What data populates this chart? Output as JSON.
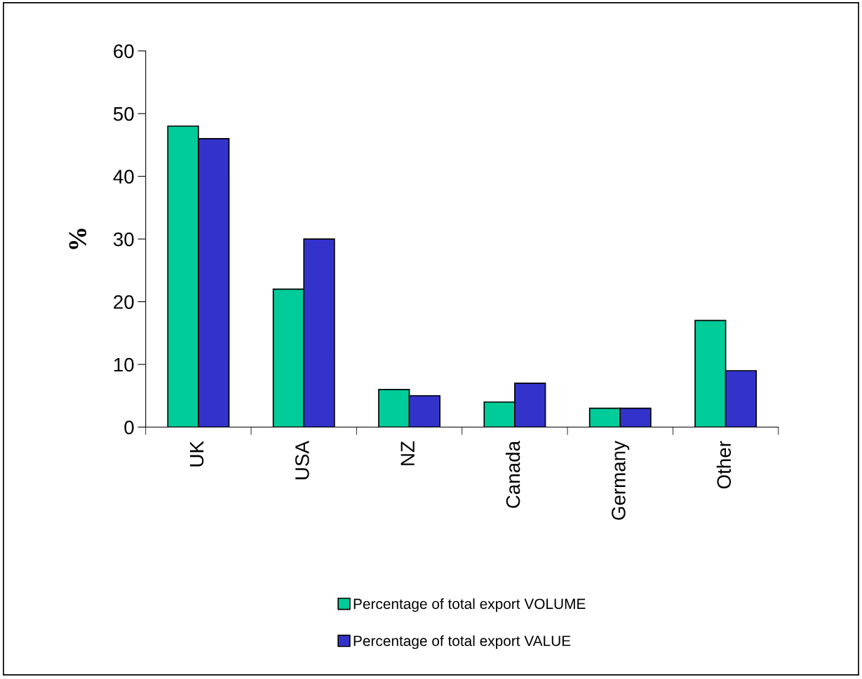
{
  "chart_data": {
    "type": "bar",
    "ylabel": "%",
    "categories": [
      "UK",
      "USA",
      "NZ",
      "Canada",
      "Germany",
      "Other"
    ],
    "series": [
      {
        "name": "Percentage of total export VOLUME",
        "color": "#00cc99",
        "values": [
          48,
          22,
          6,
          4,
          3,
          17
        ]
      },
      {
        "name": "Percentage of total export VALUE",
        "color": "#3333cc",
        "values": [
          46,
          30,
          5,
          7,
          3,
          9
        ]
      }
    ],
    "ylim": [
      0,
      60
    ],
    "yticks": [
      0,
      10,
      20,
      30,
      40,
      50,
      60
    ],
    "grid": false,
    "legend": "bottom"
  }
}
